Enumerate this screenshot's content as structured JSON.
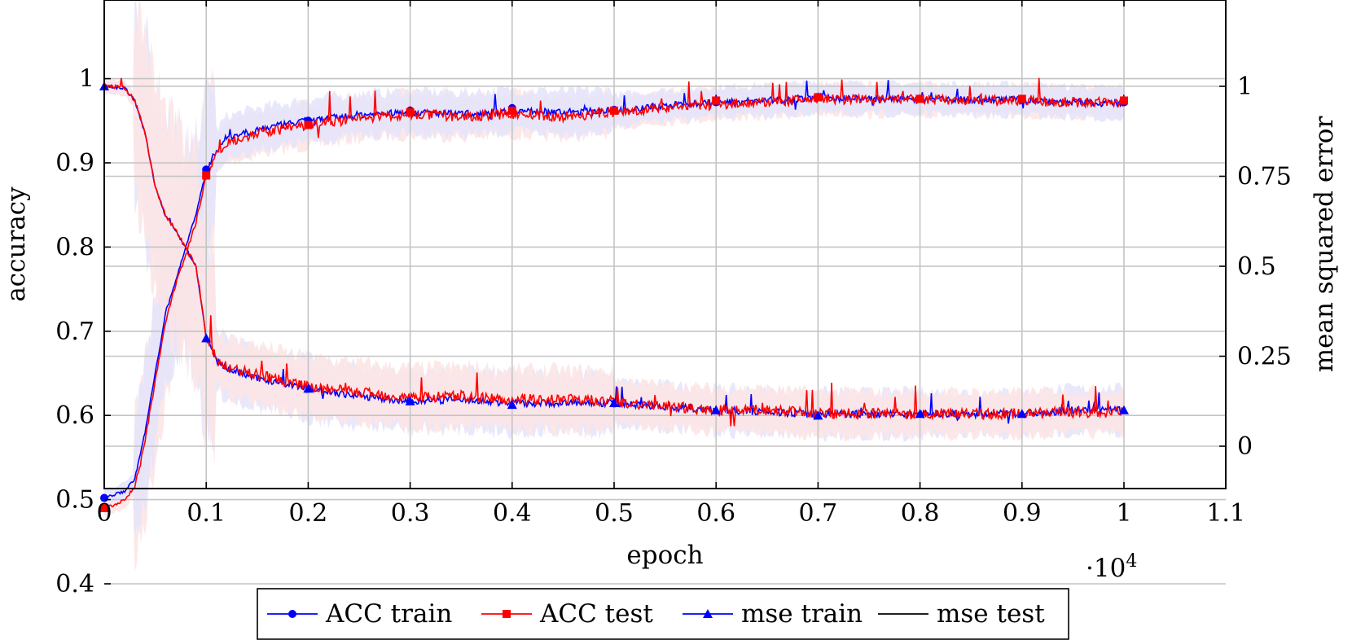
{
  "chart_data": {
    "type": "line",
    "xlabel": "epoch",
    "ylabel_left": "accuracy",
    "ylabel_right": "mean squared error",
    "x_multiplier_label": "·10",
    "x_multiplier_exponent": "4",
    "xlim": [
      0,
      1.1
    ],
    "ylim_left": [
      0.36,
      1.08
    ],
    "ylim_right": [
      -0.12,
      1.2
    ],
    "x_ticks": [
      0,
      0.1,
      0.2,
      0.3,
      0.4,
      0.5,
      0.6,
      0.7,
      0.8,
      0.9,
      1,
      1.1
    ],
    "x_tick_labels": [
      "0",
      "0.1",
      "0.2",
      "0.3",
      "0.4",
      "0.5",
      "0.6",
      "0.7",
      "0.8",
      "0.9",
      "1",
      "1.1"
    ],
    "y_left_ticks": [
      0.4,
      0.5,
      0.6,
      0.7,
      0.8,
      0.9,
      1
    ],
    "y_left_tick_labels": [
      "0.4",
      "0.5",
      "0.6",
      "0.7",
      "0.8",
      "0.9",
      "1"
    ],
    "y_right_ticks": [
      0,
      0.25,
      0.5,
      0.75,
      1
    ],
    "y_right_tick_labels": [
      "0",
      "0.25",
      "0.5",
      "0.75",
      "1"
    ],
    "grid": true,
    "legend_position": "bottom",
    "series": [
      {
        "name": "ACC train",
        "axis": "left",
        "color": "#0000ff",
        "marker": "circle",
        "x": [
          0,
          0.02,
          0.03,
          0.04,
          0.05,
          0.06,
          0.07,
          0.08,
          0.09,
          0.1,
          0.11,
          0.12,
          0.15,
          0.2,
          0.25,
          0.3,
          0.35,
          0.4,
          0.45,
          0.5,
          0.55,
          0.6,
          0.65,
          0.7,
          0.75,
          0.8,
          0.85,
          0.9,
          0.95,
          1.0
        ],
        "y": [
          0.502,
          0.51,
          0.525,
          0.58,
          0.65,
          0.72,
          0.76,
          0.8,
          0.84,
          0.89,
          0.915,
          0.93,
          0.94,
          0.95,
          0.957,
          0.96,
          0.958,
          0.962,
          0.96,
          0.962,
          0.968,
          0.972,
          0.974,
          0.977,
          0.976,
          0.976,
          0.975,
          0.975,
          0.972,
          0.97
        ],
        "markers_x": [
          0,
          0.1,
          0.2,
          0.3,
          0.4,
          0.5,
          0.6,
          0.7,
          0.8,
          0.9,
          1.0
        ],
        "markers_y": [
          0.502,
          0.892,
          0.95,
          0.962,
          0.965,
          0.963,
          0.972,
          0.978,
          0.976,
          0.975,
          0.972
        ]
      },
      {
        "name": "ACC test",
        "axis": "left",
        "color": "#ff0000",
        "marker": "square",
        "x": [
          0,
          0.02,
          0.03,
          0.04,
          0.05,
          0.06,
          0.07,
          0.08,
          0.09,
          0.1,
          0.11,
          0.12,
          0.15,
          0.2,
          0.25,
          0.3,
          0.35,
          0.4,
          0.45,
          0.5,
          0.55,
          0.6,
          0.65,
          0.7,
          0.75,
          0.8,
          0.85,
          0.9,
          0.95,
          1.0
        ],
        "y": [
          0.49,
          0.5,
          0.515,
          0.57,
          0.64,
          0.71,
          0.755,
          0.79,
          0.83,
          0.885,
          0.91,
          0.925,
          0.935,
          0.945,
          0.953,
          0.958,
          0.955,
          0.958,
          0.955,
          0.96,
          0.966,
          0.97,
          0.972,
          0.976,
          0.975,
          0.975,
          0.974,
          0.974,
          0.972,
          0.972
        ],
        "markers_x": [
          0,
          0.1,
          0.2,
          0.3,
          0.4,
          0.5,
          0.6,
          0.7,
          0.8,
          0.9,
          1.0
        ],
        "markers_y": [
          0.49,
          0.885,
          0.945,
          0.96,
          0.962,
          0.962,
          0.974,
          0.978,
          0.976,
          0.976,
          0.974
        ]
      },
      {
        "name": "mse train",
        "axis": "right",
        "color": "#0000ff",
        "marker": "triangle",
        "x": [
          0,
          0.02,
          0.03,
          0.04,
          0.05,
          0.06,
          0.07,
          0.08,
          0.09,
          0.1,
          0.11,
          0.12,
          0.15,
          0.2,
          0.25,
          0.3,
          0.35,
          0.4,
          0.45,
          0.5,
          0.55,
          0.6,
          0.65,
          0.7,
          0.75,
          0.8,
          0.85,
          0.9,
          0.95,
          1.0
        ],
        "y": [
          1.0,
          0.995,
          0.96,
          0.87,
          0.72,
          0.64,
          0.6,
          0.55,
          0.5,
          0.3,
          0.24,
          0.215,
          0.19,
          0.16,
          0.14,
          0.125,
          0.13,
          0.12,
          0.12,
          0.12,
          0.11,
          0.1,
          0.095,
          0.09,
          0.09,
          0.09,
          0.09,
          0.09,
          0.1,
          0.1
        ],
        "markers_x": [
          0,
          0.1,
          0.2,
          0.3,
          0.4,
          0.5,
          0.6,
          0.7,
          0.8,
          0.9,
          1.0
        ],
        "markers_y": [
          1.0,
          0.3,
          0.16,
          0.125,
          0.115,
          0.12,
          0.1,
          0.085,
          0.09,
          0.09,
          0.1
        ]
      },
      {
        "name": "mse test",
        "axis": "right",
        "color": "#ff0000",
        "marker": "none",
        "x": [
          0,
          0.02,
          0.03,
          0.04,
          0.05,
          0.06,
          0.07,
          0.08,
          0.09,
          0.1,
          0.11,
          0.12,
          0.15,
          0.2,
          0.25,
          0.3,
          0.35,
          0.4,
          0.45,
          0.5,
          0.55,
          0.6,
          0.65,
          0.7,
          0.75,
          0.8,
          0.85,
          0.9,
          0.95,
          1.0
        ],
        "y": [
          1.0,
          0.995,
          0.96,
          0.87,
          0.72,
          0.64,
          0.6,
          0.55,
          0.5,
          0.305,
          0.245,
          0.22,
          0.2,
          0.165,
          0.15,
          0.135,
          0.14,
          0.13,
          0.13,
          0.125,
          0.11,
          0.1,
          0.1,
          0.09,
          0.09,
          0.09,
          0.09,
          0.09,
          0.095,
          0.095
        ]
      }
    ],
    "legend": [
      {
        "label": "ACC train",
        "color": "#0000ff",
        "marker": "circle"
      },
      {
        "label": "ACC test",
        "color": "#ff0000",
        "marker": "square"
      },
      {
        "label": "mse train",
        "color": "#0000ff",
        "marker": "triangle"
      },
      {
        "label": "mse test",
        "color": "#000000",
        "marker": "none"
      }
    ],
    "band_colors": {
      "blue": "#e4e4fb",
      "red": "#fde4e4"
    }
  }
}
